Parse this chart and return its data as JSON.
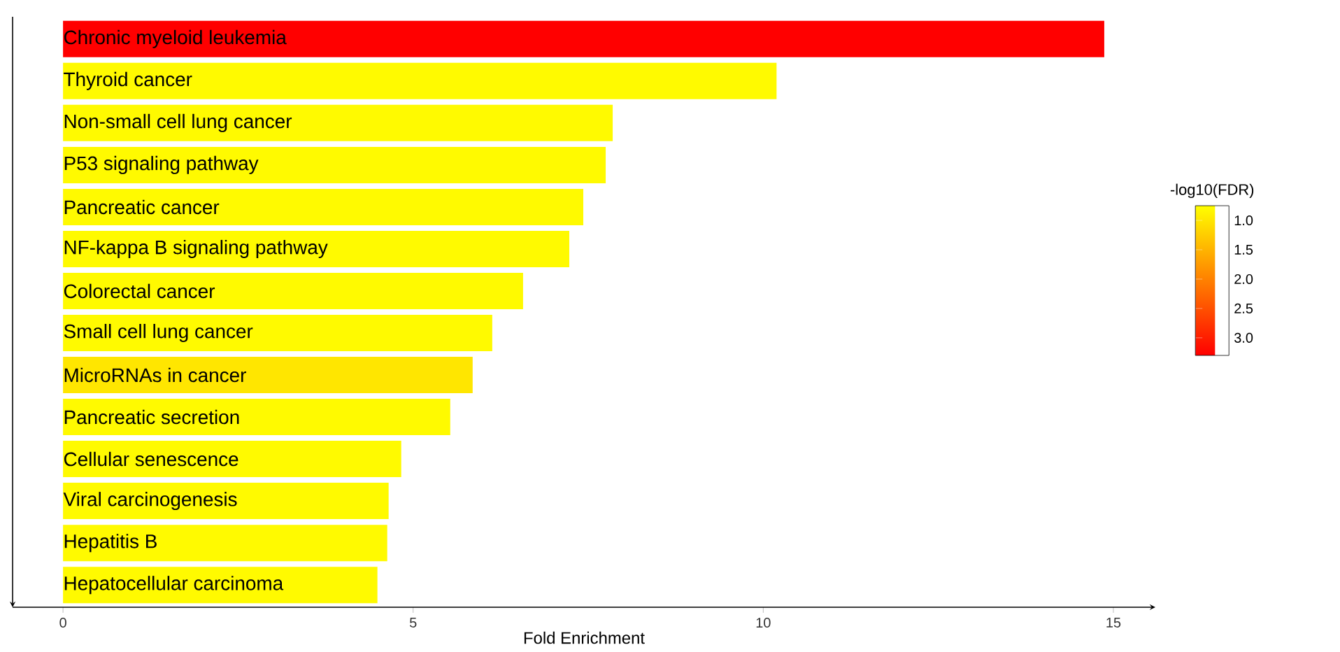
{
  "chart_data": {
    "type": "bar",
    "orientation": "horizontal",
    "xlabel": "Fold Enrichment",
    "clabel": "-log10(FDR)",
    "categories": [
      "Chronic myeloid leukemia",
      "Thyroid cancer",
      "Non-small cell lung cancer",
      "P53 signaling pathway",
      "Pancreatic cancer",
      "NF-kappa B signaling pathway",
      "Colorectal cancer",
      "Small cell lung cancer",
      "MicroRNAs in cancer",
      "Pancreatic secretion",
      "Cellular senescence",
      "Viral carcinogenesis",
      "Hepatitis B",
      "Hepatocellular carcinoma"
    ],
    "values": [
      14.87,
      10.19,
      7.85,
      7.75,
      7.43,
      7.23,
      6.57,
      6.13,
      5.85,
      5.53,
      4.83,
      4.65,
      4.63,
      4.49
    ],
    "cvalues": [
      3.3,
      0.8,
      0.8,
      0.8,
      0.8,
      0.8,
      0.8,
      0.8,
      1.0,
      0.8,
      0.8,
      0.8,
      0.8,
      0.8
    ],
    "clim": [
      0.75,
      3.3
    ],
    "cticks": [
      {
        "value": 1,
        "label": "1.0"
      },
      1.5,
      {
        "value": 2,
        "label": "2.0"
      },
      2.5,
      {
        "value": 3,
        "label": "3.0"
      }
    ],
    "xlim": [
      -0.72,
      15.6
    ],
    "xticks": [
      0,
      5,
      10,
      15
    ],
    "grid": false
  }
}
